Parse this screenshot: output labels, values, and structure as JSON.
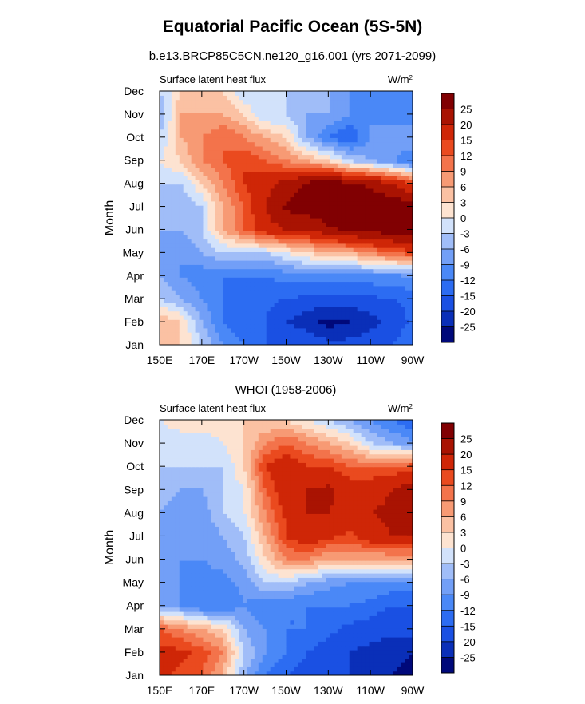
{
  "title": "Equatorial Pacific Ocean (5S-5N)",
  "subtitle": "b.e13.BRCP85C5CN.ne120_g16.001 (yrs 2071-2099)",
  "colors": {
    "levels": [
      -25,
      -20,
      -15,
      -12,
      -9,
      -6,
      -3,
      0,
      3,
      6,
      9,
      12,
      15,
      20,
      25
    ],
    "palette": [
      "#00097a",
      "#0a2fb8",
      "#1a50e3",
      "#2c6cf2",
      "#4a88f7",
      "#729ff7",
      "#a0bdf8",
      "#d2e2fb",
      "#fde3d1",
      "#fbc1a3",
      "#f79a74",
      "#f3734b",
      "#ea4a1f",
      "#cf2607",
      "#a91302",
      "#810002"
    ]
  },
  "chart_data": [
    {
      "type": "heatmap",
      "title": "",
      "panel_label": "",
      "left_label": "Surface latent heat flux",
      "units": "W/m",
      "units_sup": "2",
      "xlabel": "",
      "ylabel": "Month",
      "x_ticks": [
        "150E",
        "170E",
        "170W",
        "150W",
        "130W",
        "110W",
        "90W"
      ],
      "y_ticks": [
        "Jan",
        "Feb",
        "Mar",
        "Apr",
        "May",
        "Jun",
        "Jul",
        "Aug",
        "Sep",
        "Oct",
        "Nov",
        "Dec"
      ],
      "colorbar_labels": [
        "-25",
        "-20",
        "-15",
        "-12",
        "-9",
        "-6",
        "-3",
        "0",
        "3",
        "6",
        "9",
        "12",
        "15",
        "20",
        "25"
      ],
      "z": [
        [
          6,
          3,
          -3,
          -9,
          -12,
          -15,
          -15,
          -15,
          -18,
          -18,
          -16,
          -15,
          -12
        ],
        [
          6,
          3,
          -6,
          -12,
          -15,
          -15,
          -20,
          -23,
          -27,
          -25,
          -22,
          -18,
          -14
        ],
        [
          -3,
          -6,
          -9,
          -12,
          -13,
          -14,
          -15,
          -16,
          -17,
          -17,
          -16,
          -15,
          -14
        ],
        [
          -6,
          -9,
          -11,
          -12,
          -12,
          -12,
          -11,
          -10,
          -10,
          -10,
          -10,
          -10,
          -9
        ],
        [
          -9,
          -9,
          -6,
          -3,
          -3,
          -3,
          0,
          3,
          5,
          6,
          9,
          12,
          14
        ],
        [
          -6,
          -6,
          -3,
          6,
          12,
          18,
          20,
          20,
          24,
          26,
          27,
          28,
          29
        ],
        [
          -3,
          -6,
          -3,
          6,
          12,
          20,
          26,
          28,
          29,
          29,
          29,
          29,
          27
        ],
        [
          -3,
          -3,
          3,
          9,
          15,
          18,
          22,
          26,
          28,
          26,
          24,
          20,
          15
        ],
        [
          0,
          3,
          9,
          12,
          15,
          12,
          9,
          6,
          3,
          -3,
          -6,
          -9,
          -12
        ],
        [
          -3,
          6,
          9,
          12,
          9,
          6,
          3,
          -6,
          -12,
          -15,
          -9,
          -6,
          -6
        ],
        [
          -6,
          6,
          6,
          6,
          3,
          -3,
          -3,
          -6,
          -6,
          -9,
          -9,
          -12,
          -12
        ],
        [
          -3,
          3,
          6,
          3,
          -3,
          -3,
          -3,
          -3,
          -6,
          -9,
          -12,
          -12,
          -12
        ]
      ]
    },
    {
      "type": "heatmap",
      "title": "WHOI (1958-2006)",
      "panel_label": "WHOI (1958-2006)",
      "left_label": "Surface latent heat flux",
      "units": "W/m",
      "units_sup": "2",
      "xlabel": "",
      "ylabel": "Month",
      "x_ticks": [
        "150E",
        "170E",
        "170W",
        "150W",
        "130W",
        "110W",
        "90W"
      ],
      "y_ticks": [
        "Jan",
        "Feb",
        "Mar",
        "Apr",
        "May",
        "Jun",
        "Jul",
        "Aug",
        "Sep",
        "Oct",
        "Nov",
        "Dec"
      ],
      "colorbar_labels": [
        "-25",
        "-20",
        "-15",
        "-12",
        "-9",
        "-6",
        "-3",
        "0",
        "3",
        "6",
        "9",
        "12",
        "15",
        "20",
        "25"
      ],
      "z": [
        [
          16,
          14,
          12,
          5,
          -6,
          -12,
          -15,
          -17,
          -18,
          -20,
          -22,
          -25,
          -26
        ],
        [
          17,
          16,
          14,
          9,
          -3,
          -9,
          -12,
          -15,
          -17,
          -20,
          -22,
          -24,
          -25
        ],
        [
          12,
          9,
          6,
          3,
          -6,
          -9,
          -12,
          -12,
          -14,
          -16,
          -17,
          -18,
          -18
        ],
        [
          -6,
          -9,
          -12,
          -12,
          -9,
          -12,
          -12,
          -12,
          -12,
          -12,
          -13,
          -15,
          -15
        ],
        [
          -6,
          -9,
          -10,
          -10,
          -8,
          -3,
          -3,
          -6,
          -8,
          -9,
          -9,
          -10,
          -10
        ],
        [
          -6,
          -9,
          -9,
          -8,
          -5,
          3,
          9,
          9,
          6,
          6,
          6,
          6,
          6
        ],
        [
          -6,
          -9,
          -9,
          -6,
          -3,
          6,
          15,
          18,
          16,
          14,
          18,
          20,
          20
        ],
        [
          -6,
          -9,
          -8,
          -3,
          0,
          9,
          16,
          20,
          20,
          18,
          20,
          21,
          21
        ],
        [
          -3,
          -6,
          -6,
          -3,
          0,
          12,
          18,
          20,
          21,
          18,
          18,
          20,
          23
        ],
        [
          -3,
          -3,
          -3,
          -3,
          3,
          15,
          18,
          15,
          15,
          12,
          12,
          12,
          14
        ],
        [
          -3,
          -3,
          -3,
          0,
          3,
          9,
          12,
          9,
          6,
          3,
          -3,
          -6,
          -8
        ],
        [
          0,
          3,
          3,
          3,
          3,
          3,
          3,
          0,
          -3,
          -6,
          -9,
          -12,
          -15
        ]
      ]
    }
  ]
}
